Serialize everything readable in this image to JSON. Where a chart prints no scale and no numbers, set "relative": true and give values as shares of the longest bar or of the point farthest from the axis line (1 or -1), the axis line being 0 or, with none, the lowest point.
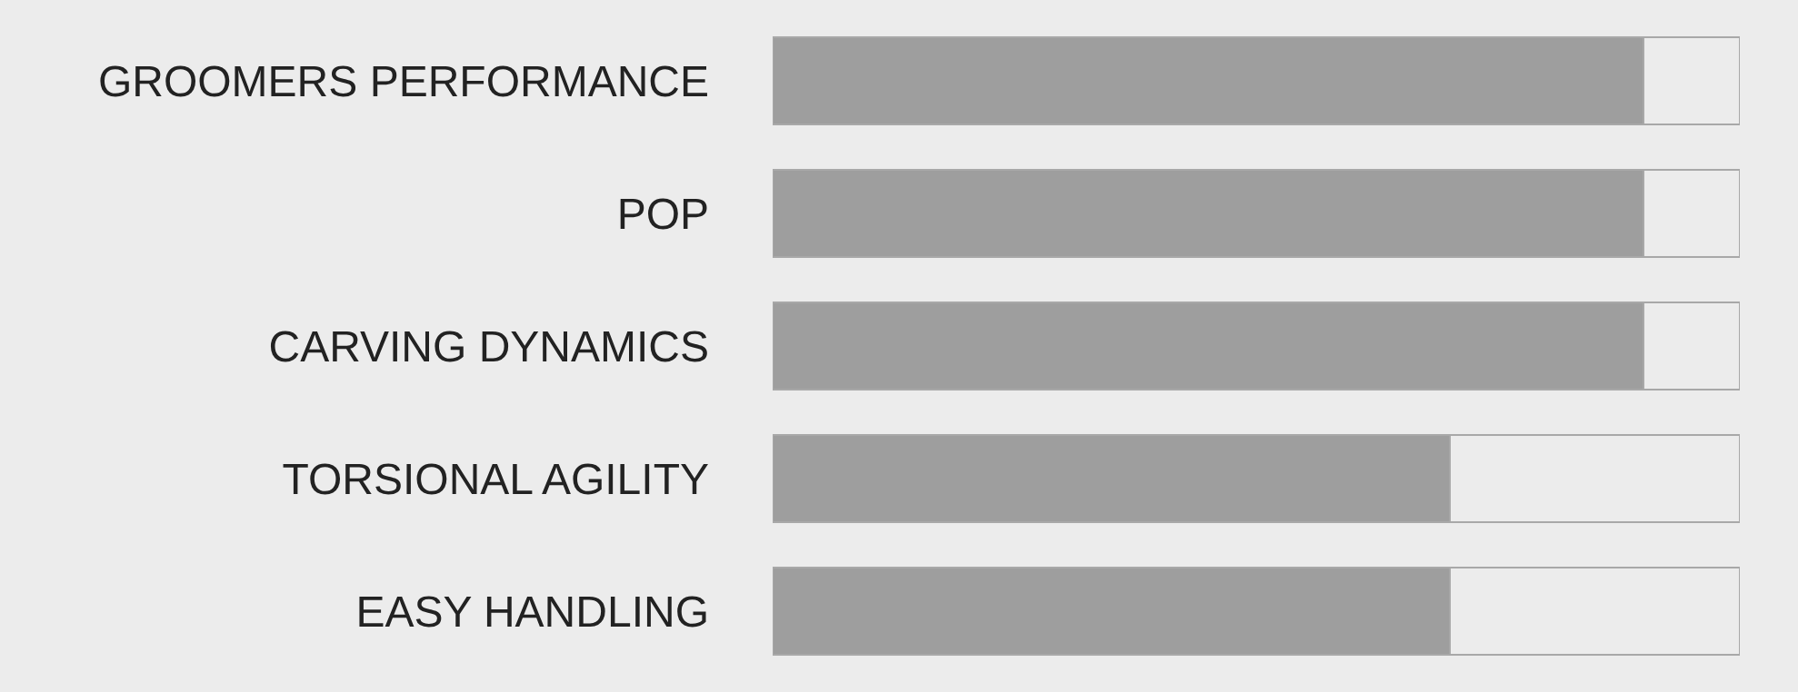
{
  "chart_data": {
    "type": "bar",
    "orientation": "horizontal",
    "stacked": true,
    "relative": true,
    "categories": [
      "GROOMERS PERFORMANCE",
      "POP",
      "CARVING DYNAMICS",
      "TORSIONAL AGILITY",
      "EASY HANDLING"
    ],
    "series": [
      {
        "color": "#9e9e9e",
        "values": [
          0.9,
          0.9,
          0.9,
          0.7,
          0.7
        ]
      },
      {
        "color": "#ececec",
        "values": [
          0.1,
          0.1,
          0.1,
          0.3,
          0.3
        ]
      }
    ]
  }
}
